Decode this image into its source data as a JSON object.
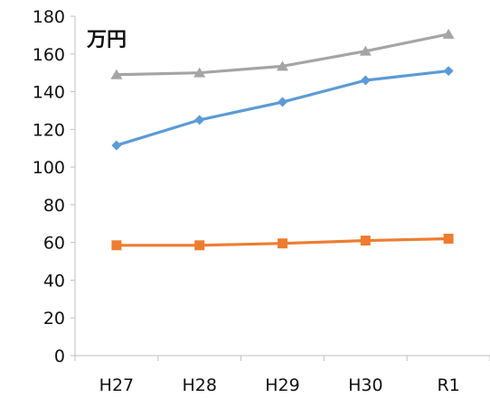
{
  "chart_data": {
    "type": "line",
    "categories": [
      "H27",
      "H28",
      "H29",
      "H30",
      "R1"
    ],
    "unit_label": "万円",
    "ylim": [
      0,
      180
    ],
    "ytick_step": 20,
    "grid": false,
    "series": [
      {
        "color": "#a5a5a5",
        "marker": "triangle",
        "values": [
          149,
          150,
          153.5,
          161.5,
          170.5
        ]
      },
      {
        "color": "#5b9bd5",
        "marker": "diamond",
        "values": [
          111.5,
          125,
          134.5,
          146,
          151
        ]
      },
      {
        "color": "#ed7d31",
        "marker": "square",
        "values": [
          58.5,
          58.5,
          59.5,
          61,
          62
        ]
      }
    ]
  }
}
